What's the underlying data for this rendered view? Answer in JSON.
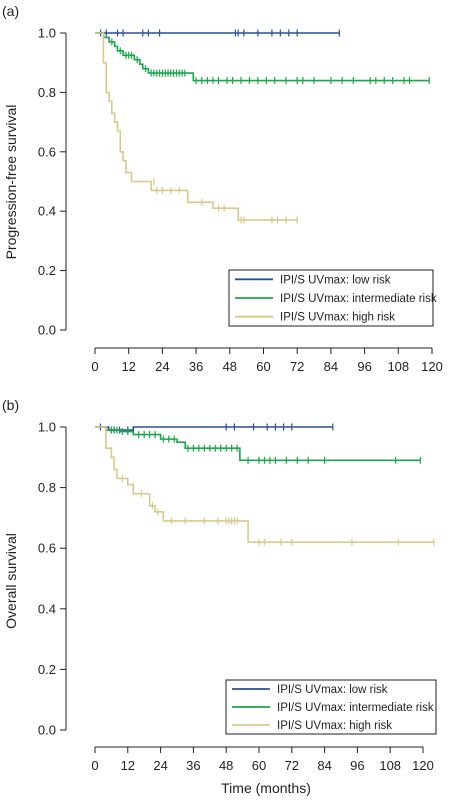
{
  "xlabel": "Time (months)",
  "chart_data": [
    {
      "type": "line",
      "panel_label": "(a)",
      "title": "",
      "xlabel": "",
      "ylabel": "Progression-free survival",
      "xlim": [
        0,
        120
      ],
      "ylim": [
        0,
        1
      ],
      "xticks": [
        0,
        12,
        24,
        36,
        48,
        60,
        72,
        84,
        96,
        108,
        120
      ],
      "yticks": [
        0.0,
        0.2,
        0.4,
        0.6,
        0.8,
        1.0
      ],
      "yticklabels": [
        "0.0",
        "0.2",
        "0.4",
        "0.6",
        "0.8",
        "1.0"
      ],
      "grid": false,
      "legend_position": "bottom-right",
      "series": [
        {
          "name": "IPI/S UVmax: low risk",
          "color": "#2a4f9a",
          "steps": [
            [
              0,
              1.0
            ],
            [
              87,
              1.0
            ]
          ],
          "censors": [
            [
              2,
              1.0
            ],
            [
              4,
              1.0
            ],
            [
              8,
              1.0
            ],
            [
              10,
              1.0
            ],
            [
              17,
              1.0
            ],
            [
              19,
              1.0
            ],
            [
              23,
              1.0
            ],
            [
              50,
              1.0
            ],
            [
              51,
              1.0
            ],
            [
              53,
              1.0
            ],
            [
              58,
              1.0
            ],
            [
              63,
              1.0
            ],
            [
              66,
              1.0
            ],
            [
              69,
              1.0
            ],
            [
              72,
              1.0
            ],
            [
              87,
              1.0
            ]
          ]
        },
        {
          "name": "IPI/S UVmax: intermediate risk",
          "color": "#1aa64a",
          "steps": [
            [
              0,
              1.0
            ],
            [
              3,
              1.0
            ],
            [
              3,
              0.985
            ],
            [
              5,
              0.985
            ],
            [
              5,
              0.97
            ],
            [
              7,
              0.97
            ],
            [
              7,
              0.955
            ],
            [
              8,
              0.955
            ],
            [
              8,
              0.94
            ],
            [
              10,
              0.94
            ],
            [
              10,
              0.925
            ],
            [
              14,
              0.925
            ],
            [
              14,
              0.91
            ],
            [
              16,
              0.91
            ],
            [
              16,
              0.895
            ],
            [
              17,
              0.895
            ],
            [
              17,
              0.88
            ],
            [
              19,
              0.88
            ],
            [
              19,
              0.865
            ],
            [
              35,
              0.865
            ],
            [
              35,
              0.84
            ],
            [
              119,
              0.84
            ]
          ],
          "censors": [
            [
              6,
              0.97
            ],
            [
              9,
              0.94
            ],
            [
              11,
              0.925
            ],
            [
              12,
              0.925
            ],
            [
              13,
              0.925
            ],
            [
              15,
              0.91
            ],
            [
              18,
              0.88
            ],
            [
              20,
              0.865
            ],
            [
              21,
              0.865
            ],
            [
              22,
              0.865
            ],
            [
              23,
              0.865
            ],
            [
              24,
              0.865
            ],
            [
              25,
              0.865
            ],
            [
              26,
              0.865
            ],
            [
              27,
              0.865
            ],
            [
              28,
              0.865
            ],
            [
              29,
              0.865
            ],
            [
              30,
              0.865
            ],
            [
              31,
              0.865
            ],
            [
              32,
              0.865
            ],
            [
              36,
              0.84
            ],
            [
              38,
              0.84
            ],
            [
              40,
              0.84
            ],
            [
              42,
              0.84
            ],
            [
              44,
              0.84
            ],
            [
              47,
              0.84
            ],
            [
              49,
              0.84
            ],
            [
              52,
              0.84
            ],
            [
              55,
              0.84
            ],
            [
              58,
              0.84
            ],
            [
              61,
              0.84
            ],
            [
              64,
              0.84
            ],
            [
              68,
              0.84
            ],
            [
              72,
              0.84
            ],
            [
              74,
              0.84
            ],
            [
              78,
              0.84
            ],
            [
              84,
              0.84
            ],
            [
              88,
              0.84
            ],
            [
              92,
              0.84
            ],
            [
              98,
              0.84
            ],
            [
              100,
              0.84
            ],
            [
              103,
              0.84
            ],
            [
              106,
              0.84
            ],
            [
              110,
              0.84
            ],
            [
              112,
              0.84
            ],
            [
              119,
              0.84
            ]
          ]
        },
        {
          "name": "IPI/S UVmax: high risk",
          "color": "#d8c98a",
          "steps": [
            [
              0,
              1.0
            ],
            [
              3,
              1.0
            ],
            [
              3,
              0.9
            ],
            [
              4,
              0.9
            ],
            [
              4,
              0.8
            ],
            [
              5,
              0.8
            ],
            [
              5,
              0.77
            ],
            [
              6,
              0.77
            ],
            [
              6,
              0.73
            ],
            [
              7,
              0.73
            ],
            [
              7,
              0.7
            ],
            [
              8,
              0.7
            ],
            [
              8,
              0.67
            ],
            [
              9,
              0.67
            ],
            [
              9,
              0.6
            ],
            [
              10,
              0.6
            ],
            [
              10,
              0.57
            ],
            [
              11,
              0.57
            ],
            [
              11,
              0.53
            ],
            [
              13,
              0.53
            ],
            [
              13,
              0.5
            ],
            [
              20,
              0.5
            ],
            [
              20,
              0.47
            ],
            [
              33,
              0.47
            ],
            [
              33,
              0.43
            ],
            [
              42,
              0.43
            ],
            [
              42,
              0.41
            ],
            [
              51,
              0.41
            ],
            [
              51,
              0.37
            ],
            [
              72,
              0.37
            ]
          ],
          "censors": [
            [
              21,
              0.5
            ],
            [
              22,
              0.47
            ],
            [
              24,
              0.47
            ],
            [
              27,
              0.47
            ],
            [
              30,
              0.47
            ],
            [
              38,
              0.43
            ],
            [
              44,
              0.41
            ],
            [
              46,
              0.41
            ],
            [
              52,
              0.37
            ],
            [
              53,
              0.37
            ],
            [
              63,
              0.37
            ],
            [
              65,
              0.37
            ],
            [
              68,
              0.37
            ],
            [
              72,
              0.37
            ]
          ]
        }
      ]
    },
    {
      "type": "line",
      "panel_label": "(b)",
      "title": "",
      "xlabel": "Time (months)",
      "ylabel": "Overall survival",
      "xlim": [
        0,
        120
      ],
      "ylim": [
        0,
        1
      ],
      "xticks": [
        0,
        12,
        24,
        36,
        48,
        60,
        72,
        84,
        96,
        108,
        120
      ],
      "yticks": [
        0.0,
        0.2,
        0.4,
        0.6,
        0.8,
        1.0
      ],
      "yticklabels": [
        "0.0",
        "0.2",
        "0.4",
        "0.6",
        "0.8",
        "1.0"
      ],
      "grid": false,
      "legend_position": "bottom-right",
      "series": [
        {
          "name": "IPI/S UVmax: low risk",
          "color": "#2a4f9a",
          "steps": [
            [
              0,
              1.0
            ],
            [
              5,
              1.0
            ],
            [
              5,
              0.99
            ],
            [
              14,
              0.99
            ],
            [
              14,
              1.0
            ],
            [
              87,
              1.0
            ]
          ],
          "censors": [
            [
              2,
              1.0
            ],
            [
              6,
              0.99
            ],
            [
              7,
              0.99
            ],
            [
              9,
              0.99
            ],
            [
              12,
              0.99
            ],
            [
              48,
              1.0
            ],
            [
              51,
              1.0
            ],
            [
              58,
              1.0
            ],
            [
              63,
              1.0
            ],
            [
              66,
              1.0
            ],
            [
              69,
              1.0
            ],
            [
              72,
              1.0
            ],
            [
              87,
              1.0
            ]
          ]
        },
        {
          "name": "IPI/S UVmax: intermediate risk",
          "color": "#1aa64a",
          "steps": [
            [
              0,
              1.0
            ],
            [
              4,
              1.0
            ],
            [
              4,
              0.99
            ],
            [
              9,
              0.99
            ],
            [
              9,
              0.985
            ],
            [
              14,
              0.985
            ],
            [
              14,
              0.975
            ],
            [
              24,
              0.975
            ],
            [
              24,
              0.96
            ],
            [
              30,
              0.96
            ],
            [
              30,
              0.95
            ],
            [
              33,
              0.95
            ],
            [
              33,
              0.93
            ],
            [
              53,
              0.93
            ],
            [
              53,
              0.89
            ],
            [
              119,
              0.89
            ]
          ],
          "censors": [
            [
              6,
              0.99
            ],
            [
              7,
              0.99
            ],
            [
              8,
              0.99
            ],
            [
              10,
              0.985
            ],
            [
              12,
              0.985
            ],
            [
              16,
              0.975
            ],
            [
              18,
              0.975
            ],
            [
              20,
              0.975
            ],
            [
              22,
              0.975
            ],
            [
              25,
              0.96
            ],
            [
              27,
              0.96
            ],
            [
              29,
              0.96
            ],
            [
              34,
              0.93
            ],
            [
              36,
              0.93
            ],
            [
              38,
              0.93
            ],
            [
              40,
              0.93
            ],
            [
              42,
              0.93
            ],
            [
              44,
              0.93
            ],
            [
              46,
              0.93
            ],
            [
              48,
              0.93
            ],
            [
              50,
              0.93
            ],
            [
              52,
              0.93
            ],
            [
              56,
              0.89
            ],
            [
              60,
              0.89
            ],
            [
              62,
              0.89
            ],
            [
              64,
              0.89
            ],
            [
              66,
              0.89
            ],
            [
              70,
              0.89
            ],
            [
              74,
              0.89
            ],
            [
              78,
              0.89
            ],
            [
              84,
              0.89
            ],
            [
              110,
              0.89
            ],
            [
              119,
              0.89
            ]
          ]
        },
        {
          "name": "IPI/S UVmax: high risk",
          "color": "#d8c98a",
          "steps": [
            [
              0,
              1.0
            ],
            [
              4,
              1.0
            ],
            [
              4,
              0.93
            ],
            [
              6,
              0.93
            ],
            [
              6,
              0.9
            ],
            [
              7,
              0.9
            ],
            [
              7,
              0.86
            ],
            [
              8,
              0.86
            ],
            [
              8,
              0.83
            ],
            [
              12,
              0.83
            ],
            [
              12,
              0.81
            ],
            [
              14,
              0.81
            ],
            [
              14,
              0.78
            ],
            [
              20,
              0.78
            ],
            [
              20,
              0.74
            ],
            [
              22,
              0.74
            ],
            [
              22,
              0.72
            ],
            [
              25,
              0.72
            ],
            [
              25,
              0.69
            ],
            [
              56,
              0.69
            ],
            [
              56,
              0.62
            ],
            [
              124,
              0.62
            ]
          ],
          "censors": [
            [
              10,
              0.83
            ],
            [
              17,
              0.78
            ],
            [
              21,
              0.74
            ],
            [
              23,
              0.72
            ],
            [
              28,
              0.69
            ],
            [
              33,
              0.69
            ],
            [
              40,
              0.69
            ],
            [
              45,
              0.69
            ],
            [
              48,
              0.69
            ],
            [
              49,
              0.69
            ],
            [
              50,
              0.69
            ],
            [
              51,
              0.69
            ],
            [
              52,
              0.69
            ],
            [
              60,
              0.62
            ],
            [
              62,
              0.62
            ],
            [
              68,
              0.62
            ],
            [
              72,
              0.62
            ],
            [
              94,
              0.62
            ],
            [
              111,
              0.62
            ],
            [
              124,
              0.62
            ]
          ]
        }
      ]
    }
  ]
}
